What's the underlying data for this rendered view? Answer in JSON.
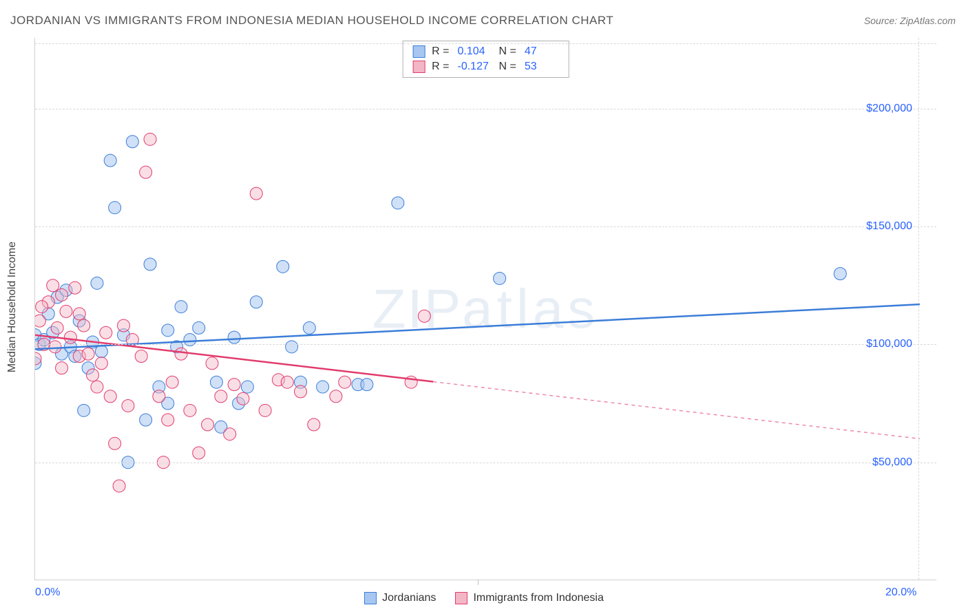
{
  "title": "JORDANIAN VS IMMIGRANTS FROM INDONESIA MEDIAN HOUSEHOLD INCOME CORRELATION CHART",
  "source": "Source: ZipAtlas.com",
  "watermark": "ZIPatlas",
  "y_axis_label": "Median Household Income",
  "chart": {
    "type": "scatter",
    "xlim": [
      0,
      20
    ],
    "ylim": [
      0,
      230000
    ],
    "x_ticks": [
      0,
      20
    ],
    "x_tick_labels": [
      "0.0%",
      "20.0%"
    ],
    "x_minor_tick": 10,
    "y_gridlines": [
      50000,
      100000,
      150000,
      200000
    ],
    "y_tick_labels": [
      "$50,000",
      "$100,000",
      "$150,000",
      "$200,000"
    ],
    "grid_color": "#d8d8d8",
    "background_color": "#ffffff",
    "tick_label_color": "#2962ff",
    "axis_label_color": "#444444",
    "title_color": "#555555",
    "series": [
      {
        "name": "Jordanians",
        "fill": "#a7c7f0",
        "stroke": "#3b7dd8",
        "fill_opacity": 0.55,
        "marker_radius": 9,
        "R": "0.104",
        "N": "47",
        "trend": {
          "x1": 0,
          "y1": 98000,
          "x2": 20,
          "y2": 117000,
          "solid_to_x": 20
        },
        "points": [
          [
            0.0,
            92000
          ],
          [
            0.0,
            104000
          ],
          [
            0.1,
            100000
          ],
          [
            0.2,
            102000
          ],
          [
            0.4,
            105000
          ],
          [
            0.5,
            120000
          ],
          [
            0.6,
            96000
          ],
          [
            0.7,
            123000
          ],
          [
            0.8,
            99000
          ],
          [
            1.0,
            110000
          ],
          [
            1.1,
            72000
          ],
          [
            1.2,
            90000
          ],
          [
            1.4,
            126000
          ],
          [
            1.5,
            97000
          ],
          [
            1.7,
            178000
          ],
          [
            1.8,
            158000
          ],
          [
            2.0,
            104000
          ],
          [
            2.1,
            50000
          ],
          [
            2.2,
            186000
          ],
          [
            2.5,
            68000
          ],
          [
            2.6,
            134000
          ],
          [
            2.8,
            82000
          ],
          [
            3.0,
            75000
          ],
          [
            3.0,
            106000
          ],
          [
            3.2,
            99000
          ],
          [
            3.3,
            116000
          ],
          [
            3.5,
            102000
          ],
          [
            3.7,
            107000
          ],
          [
            4.1,
            84000
          ],
          [
            4.2,
            65000
          ],
          [
            4.5,
            103000
          ],
          [
            4.6,
            75000
          ],
          [
            4.8,
            82000
          ],
          [
            5.0,
            118000
          ],
          [
            5.6,
            133000
          ],
          [
            5.8,
            99000
          ],
          [
            6.0,
            84000
          ],
          [
            6.2,
            107000
          ],
          [
            6.5,
            82000
          ],
          [
            7.3,
            83000
          ],
          [
            7.5,
            83000
          ],
          [
            8.2,
            160000
          ],
          [
            10.5,
            128000
          ],
          [
            18.2,
            130000
          ],
          [
            0.3,
            113000
          ],
          [
            0.9,
            95000
          ],
          [
            1.3,
            101000
          ]
        ]
      },
      {
        "name": "Immigants from Indonesia",
        "legend_label": "Immigrants from Indonesia",
        "fill": "#f2b6c6",
        "stroke": "#e23b6c",
        "fill_opacity": 0.45,
        "marker_radius": 9,
        "R": "-0.127",
        "N": "53",
        "trend": {
          "x1": 0,
          "y1": 104000,
          "x2": 20,
          "y2": 60000,
          "solid_to_x": 9
        },
        "points": [
          [
            0.0,
            94000
          ],
          [
            0.1,
            110000
          ],
          [
            0.2,
            100000
          ],
          [
            0.3,
            118000
          ],
          [
            0.4,
            125000
          ],
          [
            0.5,
            107000
          ],
          [
            0.6,
            121000
          ],
          [
            0.6,
            90000
          ],
          [
            0.7,
            114000
          ],
          [
            0.8,
            103000
          ],
          [
            0.9,
            124000
          ],
          [
            1.0,
            95000
          ],
          [
            1.0,
            113000
          ],
          [
            1.1,
            108000
          ],
          [
            1.2,
            96000
          ],
          [
            1.3,
            87000
          ],
          [
            1.4,
            82000
          ],
          [
            1.5,
            92000
          ],
          [
            1.6,
            105000
          ],
          [
            1.7,
            78000
          ],
          [
            1.8,
            58000
          ],
          [
            1.9,
            40000
          ],
          [
            2.0,
            108000
          ],
          [
            2.1,
            74000
          ],
          [
            2.2,
            102000
          ],
          [
            2.4,
            95000
          ],
          [
            2.5,
            173000
          ],
          [
            2.6,
            187000
          ],
          [
            2.8,
            78000
          ],
          [
            2.9,
            50000
          ],
          [
            3.0,
            68000
          ],
          [
            3.1,
            84000
          ],
          [
            3.3,
            96000
          ],
          [
            3.5,
            72000
          ],
          [
            3.7,
            54000
          ],
          [
            3.9,
            66000
          ],
          [
            4.0,
            92000
          ],
          [
            4.2,
            78000
          ],
          [
            4.4,
            62000
          ],
          [
            4.5,
            83000
          ],
          [
            4.7,
            77000
          ],
          [
            5.0,
            164000
          ],
          [
            5.2,
            72000
          ],
          [
            5.5,
            85000
          ],
          [
            5.7,
            84000
          ],
          [
            6.0,
            80000
          ],
          [
            6.3,
            66000
          ],
          [
            6.8,
            78000
          ],
          [
            7.0,
            84000
          ],
          [
            8.5,
            84000
          ],
          [
            8.8,
            112000
          ],
          [
            0.15,
            116000
          ],
          [
            0.45,
            99000
          ]
        ]
      }
    ],
    "stat_box": {
      "r_label": "R =",
      "n_label": "N ="
    }
  },
  "legend": {
    "items": [
      {
        "label": "Jordanians",
        "fill": "#a7c7f0",
        "stroke": "#3b7dd8"
      },
      {
        "label": "Immigrants from Indonesia",
        "fill": "#f2b6c6",
        "stroke": "#e23b6c"
      }
    ]
  }
}
